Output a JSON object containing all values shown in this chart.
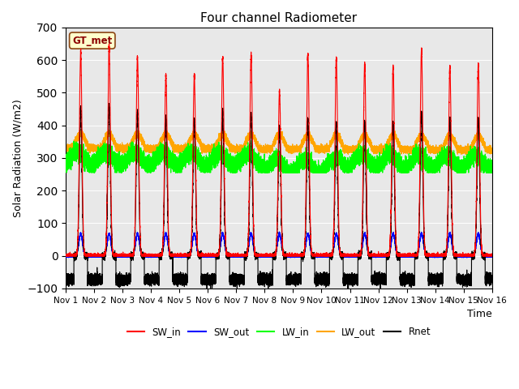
{
  "title": "Four channel Radiometer",
  "xlabel": "Time",
  "ylabel": "Solar Radiation (W/m2)",
  "ylim": [
    -100,
    700
  ],
  "yticks": [
    -100,
    0,
    100,
    200,
    300,
    400,
    500,
    600,
    700
  ],
  "num_days": 15,
  "xtick_labels": [
    "Nov 1",
    "Nov 2",
    "Nov 3",
    "Nov 4",
    "Nov 5",
    "Nov 6",
    "Nov 7",
    "Nov 8",
    "Nov 9",
    "Nov 10",
    "Nov 11",
    "Nov 12",
    "Nov 13",
    "Nov 14",
    "Nov 15",
    "Nov 16"
  ],
  "station_label": "GT_met",
  "station_label_color": "#8B0000",
  "station_box_facecolor": "#FFFFCC",
  "station_box_edgecolor": "#8B4513",
  "plot_bg_color": "#E8E8E8",
  "sw_in_color": "red",
  "sw_out_color": "blue",
  "lw_in_color": "#00FF00",
  "lw_out_color": "orange",
  "rnet_color": "black",
  "sw_in_peaks": [
    630,
    645,
    610,
    555,
    555,
    608,
    620,
    507,
    620,
    608,
    590,
    580,
    635,
    580,
    590
  ],
  "rnet_peaks": [
    450,
    455,
    440,
    420,
    415,
    440,
    430,
    390,
    415,
    405,
    410,
    405,
    440,
    420,
    420
  ],
  "seed": 42
}
